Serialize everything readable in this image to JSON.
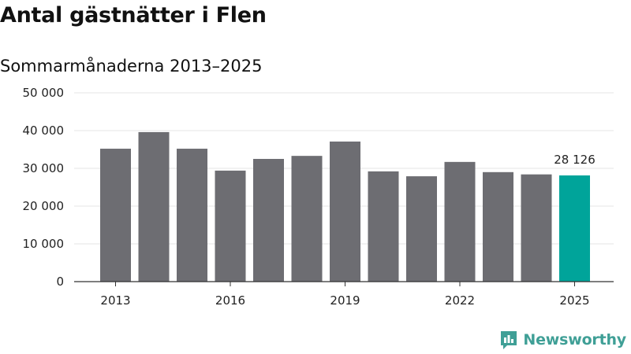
{
  "title": "Antal gästnätter i Flen",
  "subtitle": "Sommarmånaderna 2013–2025",
  "brand": {
    "name": "Newsworthy",
    "color": "#3f9f96",
    "icon": "newsworthy-logo-icon"
  },
  "colors": {
    "bar": "#6d6d72",
    "highlight": "#00a49a",
    "grid": "#e4e4e4",
    "axis": "#333333"
  },
  "chart_data": {
    "type": "bar",
    "title": "Antal gästnätter i Flen",
    "subtitle": "Sommarmånaderna 2013–2025",
    "categories": [
      "2013",
      "2014",
      "2015",
      "2016",
      "2017",
      "2018",
      "2019",
      "2020",
      "2021",
      "2022",
      "2023",
      "2024",
      "2025"
    ],
    "values": [
      35200,
      39600,
      35200,
      29400,
      32500,
      33300,
      37100,
      29200,
      27900,
      31700,
      29000,
      28400,
      28126
    ],
    "highlight_index": 12,
    "data_labels": [
      {
        "index": 12,
        "text": "28 126"
      }
    ],
    "x_tick_labels": [
      "2013",
      "2016",
      "2019",
      "2022",
      "2025"
    ],
    "y_ticks": [
      0,
      10000,
      20000,
      30000,
      40000,
      50000
    ],
    "y_tick_labels": [
      "0",
      "10 000",
      "20 000",
      "30 000",
      "40 000",
      "50 000"
    ],
    "ylim": [
      0,
      50000
    ],
    "xlabel": "",
    "ylabel": "",
    "grid": true,
    "legend": "none"
  }
}
